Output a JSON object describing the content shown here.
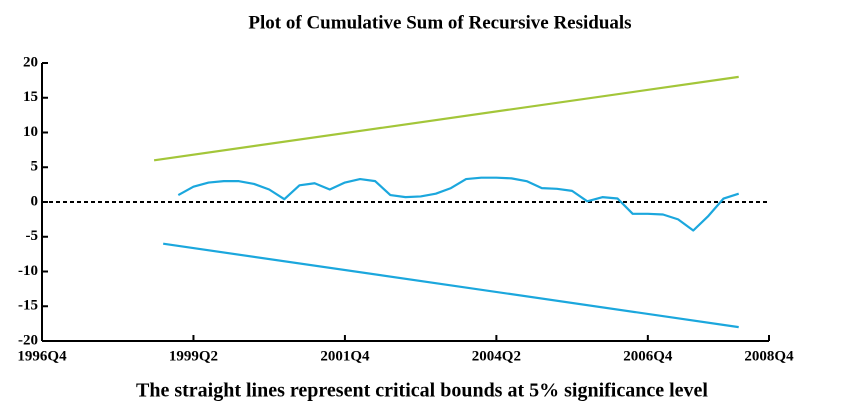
{
  "chart_data": {
    "type": "line",
    "title": "Plot of Cumulative Sum of Recursive Residuals",
    "caption": "The straight lines represent critical bounds at 5% significance level",
    "series": [
      {
        "color": "#a3c639",
        "x": [
          1998.6,
          2008.25
        ],
        "values": [
          6.0,
          18.0
        ]
      },
      {
        "color": "#1ba7dd",
        "x": [
          1998.75,
          2008.25
        ],
        "values": [
          -6.0,
          -18.0
        ]
      },
      {
        "color": "#1ba7dd",
        "x": [
          1999.0,
          1999.25,
          1999.5,
          1999.75,
          2000.0,
          2000.25,
          2000.5,
          2000.75,
          2001.0,
          2001.25,
          2001.5,
          2001.75,
          2002.0,
          2002.25,
          2002.5,
          2002.75,
          2003.0,
          2003.25,
          2003.5,
          2003.75,
          2004.0,
          2004.25,
          2004.5,
          2004.75,
          2005.0,
          2005.25,
          2005.5,
          2005.75,
          2006.0,
          2006.25,
          2006.5,
          2006.75,
          2007.0,
          2007.25,
          2007.5,
          2007.75,
          2008.0,
          2008.25
        ],
        "values": [
          1.0,
          2.2,
          2.8,
          3.0,
          3.0,
          2.6,
          1.8,
          0.4,
          2.4,
          2.7,
          1.8,
          2.8,
          3.3,
          3.0,
          1.0,
          0.7,
          0.8,
          1.2,
          2.0,
          3.3,
          3.5,
          3.5,
          3.4,
          3.0,
          2.0,
          1.9,
          1.6,
          0.1,
          0.7,
          0.5,
          -1.7,
          -1.7,
          -1.8,
          -2.5,
          -4.1,
          -2.0,
          0.5,
          1.2
        ]
      }
    ],
    "reference_line": 0,
    "xlim": [
      1996.75,
      2008.75
    ],
    "xticks": [
      {
        "value": 1996.75,
        "label": "1996Q4"
      },
      {
        "value": 1999.25,
        "label": "1999Q2"
      },
      {
        "value": 2001.75,
        "label": "2001Q4"
      },
      {
        "value": 2004.25,
        "label": "2004Q2"
      },
      {
        "value": 2006.75,
        "label": "2006Q4"
      },
      {
        "value": 2008.75,
        "label": "2008Q4"
      }
    ],
    "ylim": [
      -20,
      20
    ],
    "yticks": [
      -20,
      -15,
      -10,
      -5,
      0,
      5,
      10,
      15,
      20
    ]
  }
}
